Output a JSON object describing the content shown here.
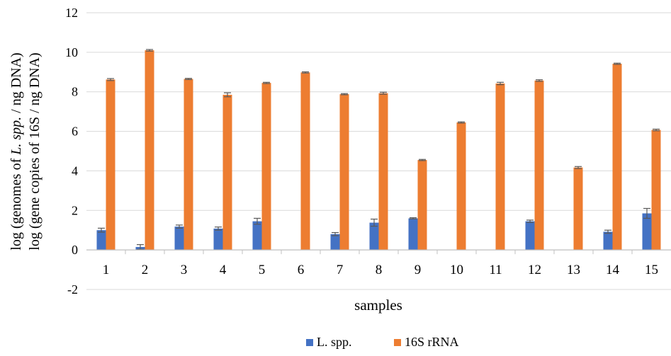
{
  "chart_data": {
    "type": "bar",
    "title": "",
    "xlabel": "samples",
    "ylabel_parts": [
      "log (genomes of ",
      "L. spp.",
      " / ng DNA)"
    ],
    "ylabel2": "log (gene copies of 16S  / ng DNA)",
    "ylim": [
      -2,
      12
    ],
    "yticks": [
      -2,
      0,
      2,
      4,
      6,
      8,
      10,
      12
    ],
    "ytick_labels": [
      "-2",
      "0",
      "2",
      "4",
      "6",
      "8",
      "10",
      "12"
    ],
    "grid": true,
    "legend_position": "bottom",
    "categories": [
      "1",
      "2",
      "3",
      "4",
      "5",
      "6",
      "7",
      "8",
      "9",
      "10",
      "11",
      "12",
      "13",
      "14",
      "15"
    ],
    "series": [
      {
        "name": "L. spp.",
        "color": "#4472C4",
        "values": [
          1.0,
          0.15,
          1.18,
          1.08,
          1.45,
          0,
          0.8,
          1.38,
          1.6,
          0,
          0,
          1.45,
          0,
          0.92,
          1.85
        ],
        "errors": [
          0.1,
          0.12,
          0.08,
          0.08,
          0.15,
          0,
          0.08,
          0.18,
          0.03,
          0,
          0,
          0.06,
          0,
          0.08,
          0.25
        ]
      },
      {
        "name": "16S rRNA",
        "color": "#ED7D31",
        "values": [
          8.62,
          10.1,
          8.65,
          7.85,
          8.45,
          8.98,
          7.88,
          7.93,
          4.55,
          6.45,
          8.42,
          8.57,
          4.17,
          9.42,
          6.07
        ],
        "errors": [
          0.05,
          0.04,
          0.03,
          0.1,
          0.03,
          0.03,
          0.03,
          0.05,
          0.03,
          0.03,
          0.06,
          0.04,
          0.05,
          0.03,
          0.04
        ]
      }
    ]
  }
}
